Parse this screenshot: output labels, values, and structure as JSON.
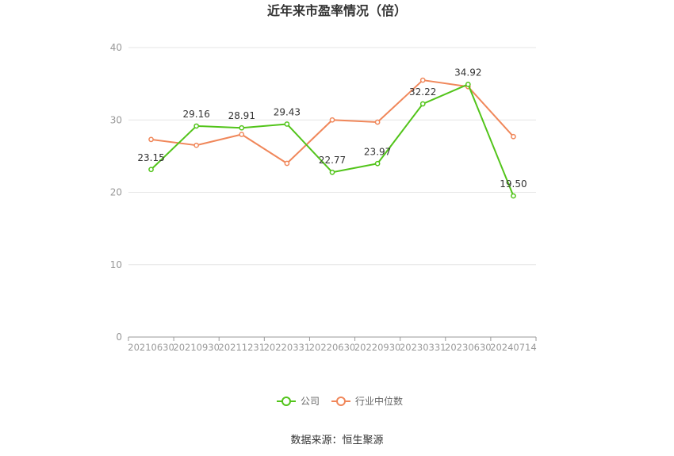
{
  "chart_data": {
    "type": "line",
    "title": "近年来市盈率情况（倍）",
    "categories": [
      "20210630",
      "20210930",
      "20211231",
      "20220331",
      "20220630",
      "20220930",
      "20230331",
      "20230630",
      "20240714"
    ],
    "series": [
      {
        "name": "公司",
        "color": "#52c41a",
        "values": [
          23.15,
          29.16,
          28.91,
          29.43,
          22.77,
          23.97,
          32.22,
          34.92,
          19.5
        ],
        "labels": [
          "23.15",
          "29.16",
          "28.91",
          "29.43",
          "22.77",
          "23.97",
          "32.22",
          "34.92",
          "19.50"
        ]
      },
      {
        "name": "行业中位数",
        "color": "#f0875a",
        "values": [
          27.3,
          26.5,
          28.0,
          24.0,
          30.0,
          29.7,
          35.5,
          34.6,
          27.7
        ]
      }
    ],
    "yticks": [
      0,
      10,
      20,
      30,
      40
    ],
    "ylim": [
      0,
      40
    ],
    "grid": true,
    "legend_position": "bottom"
  },
  "source_text": "数据来源：恒生聚源"
}
